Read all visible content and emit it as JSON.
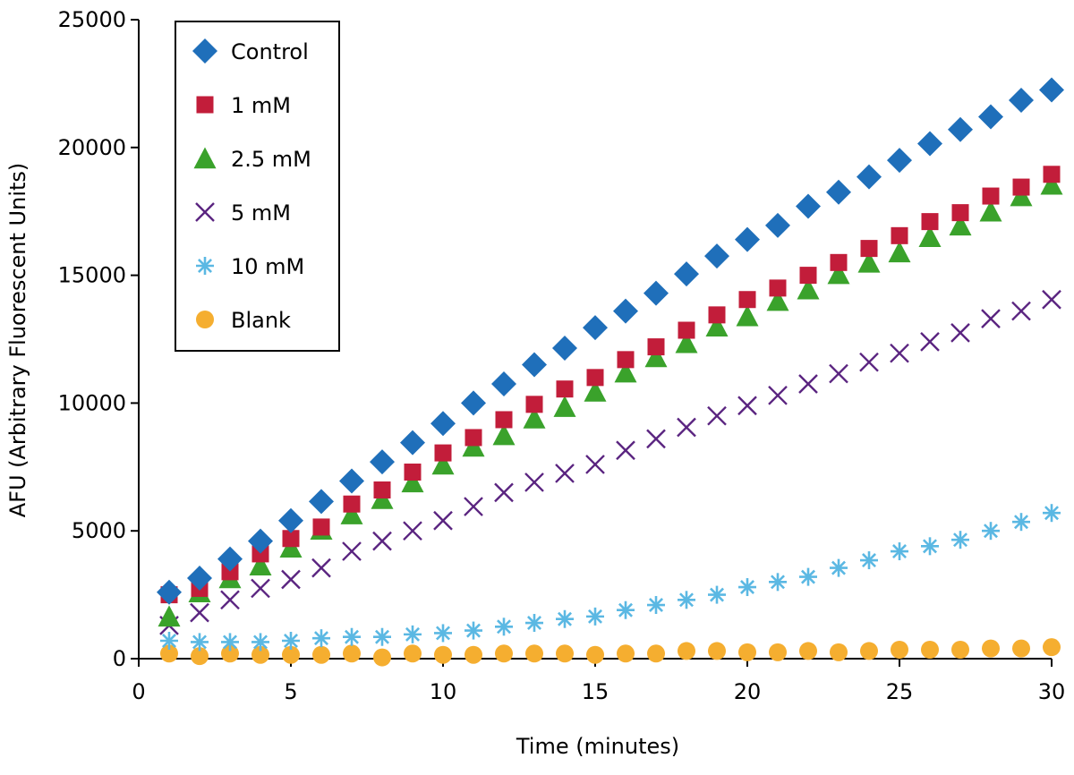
{
  "chart_data": {
    "type": "scatter",
    "title": "",
    "xlabel": "Time (minutes)",
    "ylabel": "AFU (Arbitrary Fluorescent Units)",
    "xlim": [
      0,
      30
    ],
    "ylim": [
      0,
      25000
    ],
    "xticks": [
      0,
      5,
      10,
      15,
      20,
      25,
      30
    ],
    "yticks": [
      0,
      5000,
      10000,
      15000,
      20000,
      25000
    ],
    "grid": false,
    "legend_position": "top-left",
    "x": [
      1,
      2,
      3,
      4,
      5,
      6,
      7,
      8,
      9,
      10,
      11,
      12,
      13,
      14,
      15,
      16,
      17,
      18,
      19,
      20,
      21,
      22,
      23,
      24,
      25,
      26,
      27,
      28,
      29,
      30
    ],
    "series": [
      {
        "name": "Control",
        "marker": "diamond",
        "color": "#1f6fba",
        "values": [
          2600,
          3150,
          3900,
          4600,
          5400,
          6150,
          6950,
          7700,
          8450,
          9200,
          10000,
          10750,
          11500,
          12150,
          12950,
          13600,
          14300,
          15050,
          15750,
          16400,
          16950,
          17700,
          18250,
          18850,
          19500,
          20150,
          20700,
          21200,
          21850,
          22250
        ]
      },
      {
        "name": "1 mM",
        "marker": "square",
        "color": "#c21d3a",
        "values": [
          2500,
          2750,
          3400,
          4100,
          4700,
          5150,
          6050,
          6600,
          7300,
          8050,
          8650,
          9350,
          9950,
          10550,
          11000,
          11700,
          12200,
          12850,
          13450,
          14050,
          14500,
          15000,
          15500,
          16050,
          16550,
          17100,
          17450,
          18100,
          18450,
          18950
        ]
      },
      {
        "name": "2.5 mM",
        "marker": "triangle",
        "color": "#3aa22b",
        "values": [
          1650,
          2600,
          3150,
          3650,
          4350,
          5050,
          5650,
          6250,
          6900,
          7600,
          8300,
          8750,
          9400,
          9850,
          10450,
          11200,
          11800,
          12350,
          13000,
          13400,
          14000,
          14450,
          15050,
          15500,
          15900,
          16500,
          16950,
          17500,
          18100,
          18550
        ]
      },
      {
        "name": "5 mM",
        "marker": "x",
        "color": "#5a2480",
        "values": [
          1300,
          1800,
          2300,
          2750,
          3100,
          3550,
          4200,
          4600,
          5000,
          5400,
          5950,
          6500,
          6900,
          7250,
          7600,
          8150,
          8600,
          9050,
          9500,
          9900,
          10300,
          10750,
          11150,
          11600,
          11950,
          12400,
          12750,
          13300,
          13600,
          14050
        ]
      },
      {
        "name": "10 mM",
        "marker": "asterisk",
        "color": "#5bb8e3",
        "values": [
          700,
          650,
          650,
          650,
          700,
          800,
          850,
          850,
          950,
          1000,
          1100,
          1250,
          1400,
          1550,
          1650,
          1900,
          2100,
          2300,
          2500,
          2800,
          3000,
          3200,
          3550,
          3850,
          4200,
          4400,
          4650,
          5000,
          5350,
          5700
        ]
      },
      {
        "name": "Blank",
        "marker": "circle",
        "color": "#f5ae30",
        "values": [
          200,
          100,
          200,
          150,
          150,
          150,
          200,
          50,
          200,
          150,
          150,
          200,
          200,
          200,
          150,
          200,
          200,
          300,
          300,
          250,
          250,
          300,
          250,
          300,
          350,
          350,
          350,
          400,
          400,
          450
        ]
      }
    ]
  }
}
